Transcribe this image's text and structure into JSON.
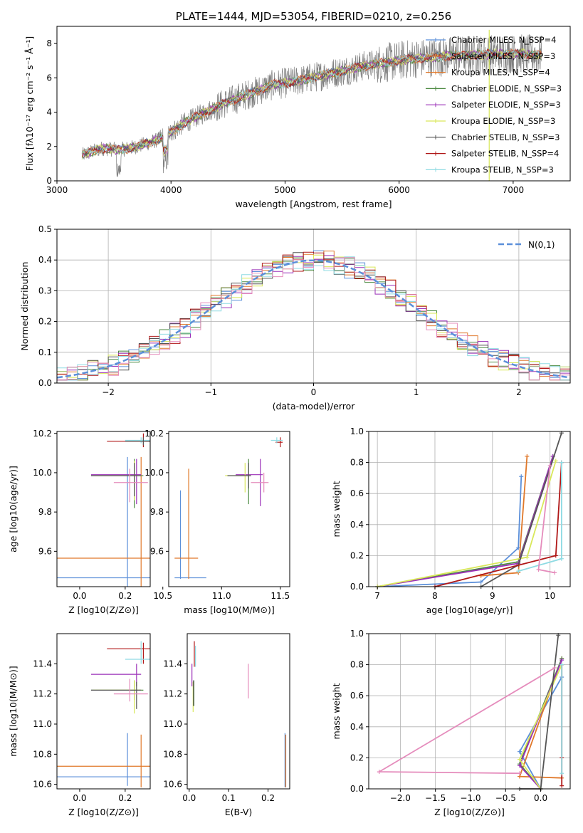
{
  "colors": {
    "chabrier_miles": "#5b8fd9",
    "salpeter_miles": "#e0782a",
    "kroupa_miles": "#e0782a",
    "chabrier_elodie": "#4c8a42",
    "salpeter_elodie": "#9b30b8",
    "kroupa_elodie": "#d9e85a",
    "chabrier_stelib": "#555555",
    "salpeter_stelib": "#b01818",
    "kroupa_stelib": "#8fdbe3",
    "pink": "#e58cbc",
    "data_gray": "#808080",
    "normal_curve": "#5b8fd9"
  },
  "chart_data": [
    {
      "id": "spectrum",
      "type": "line",
      "title": "PLATE=1444, MJD=53054, FIBERID=0210, z=0.256",
      "xlabel": "wavelength [Angstrom, rest frame]",
      "ylabel": "Flux [fλ10⁻¹⁷ erg cm⁻² s⁻¹ Å⁻¹]",
      "xlim": [
        3000,
        7500
      ],
      "ylim": [
        0,
        9
      ],
      "xticks": [
        "3000",
        "4000",
        "5000",
        "6000",
        "7000"
      ],
      "yticks": [
        "0",
        "2",
        "4",
        "6",
        "8"
      ],
      "continuum": {
        "x": [
          3220,
          3400,
          3550,
          3700,
          3850,
          3950,
          4100,
          4300,
          4500,
          4700,
          4900,
          5100,
          5300,
          5500,
          5700,
          5900,
          6100,
          6300,
          6500,
          6700,
          6900,
          7100,
          7250
        ],
        "y": [
          1.5,
          1.9,
          1.8,
          2.0,
          2.3,
          2.6,
          3.3,
          4.0,
          4.6,
          5.1,
          5.6,
          5.8,
          6.1,
          6.4,
          6.7,
          6.9,
          7.1,
          7.2,
          7.3,
          7.35,
          7.4,
          7.4,
          7.3
        ]
      },
      "legend": [
        "Chabrier MILES, N_SSP=4",
        "Salpeter MILES, N_SSP=3",
        "Kroupa MILES, N_SSP=4",
        "Chabrier ELODIE, N_SSP=3",
        "Salpeter ELODIE, N_SSP=3",
        "Kroupa ELODIE, N_SSP=3",
        "Chabrier STELIB, N_SSP=3",
        "Salpeter STELIB, N_SSP=4",
        "Kroupa STELIB, N_SSP=3"
      ]
    },
    {
      "id": "residuals",
      "type": "line",
      "xlabel": "(data-model)/error",
      "ylabel": "Normed distribution",
      "xlim": [
        -2.5,
        2.5
      ],
      "ylim": [
        0,
        0.5
      ],
      "xticks": [
        "−2",
        "−1",
        "0",
        "1",
        "2"
      ],
      "yticks": [
        "0.0",
        "0.1",
        "0.2",
        "0.3",
        "0.4",
        "0.5"
      ],
      "grid": true,
      "legend": [
        "N(0,1)"
      ],
      "bin_width": 0.1
    },
    {
      "id": "age_vs_Z",
      "type": "scatter",
      "xlabel": "Z [log10(Z/Z⊙)]",
      "ylabel": "age  [log10(age/yr)]",
      "xlim": [
        -0.1,
        0.31
      ],
      "ylim": [
        9.42,
        10.21
      ],
      "xticks": [
        "0.0",
        "0.2"
      ],
      "yticks": [
        "9.6",
        "9.8",
        "10.0",
        "10.2"
      ]
    },
    {
      "id": "age_vs_mass",
      "type": "scatter",
      "xlabel": "mass [log10(M/M⊙)]",
      "ylabel": "",
      "xlim": [
        10.55,
        11.58
      ],
      "ylim": [
        9.42,
        10.21
      ],
      "xticks": [
        "10.5",
        "11.0",
        "11.5"
      ],
      "yticks": [
        "9.6",
        "9.8",
        "10.0",
        "10.2"
      ]
    },
    {
      "id": "weight_vs_age",
      "type": "line",
      "xlabel": "age  [log10(age/yr)]",
      "ylabel": "mass weight",
      "xlim": [
        6.85,
        10.35
      ],
      "ylim": [
        0,
        1
      ],
      "xticks": [
        "7",
        "8",
        "9",
        "10"
      ],
      "yticks": [
        "0.0",
        "0.2",
        "0.4",
        "0.6",
        "0.8",
        "1.0"
      ],
      "grid": true
    },
    {
      "id": "mass_vs_Z",
      "type": "scatter",
      "xlabel": "Z [log10(Z/Z⊙)]",
      "ylabel": "mass [log10(M/M⊙)]",
      "xlim": [
        -0.1,
        0.31
      ],
      "ylim": [
        10.57,
        11.6
      ],
      "xticks": [
        "0.0",
        "0.2"
      ],
      "yticks": [
        "10.6",
        "10.8",
        "11.0",
        "11.2",
        "11.4"
      ]
    },
    {
      "id": "mass_vs_ebv",
      "type": "scatter",
      "xlabel": "E(B-V)",
      "ylabel": "",
      "xlim": [
        -0.005,
        0.255
      ],
      "ylim": [
        10.57,
        11.6
      ],
      "xticks": [
        "0.0",
        "0.1",
        "0.2"
      ],
      "yticks": [
        "10.6",
        "10.8",
        "11.0",
        "11.2",
        "11.4"
      ]
    },
    {
      "id": "weight_vs_Z",
      "type": "line",
      "xlabel": "Z [log10(Z/Z⊙)]",
      "ylabel": "mass weight",
      "xlim": [
        -2.45,
        0.42
      ],
      "ylim": [
        0,
        1
      ],
      "xticks": [
        "−2.0",
        "−1.5",
        "−1.0",
        "−0.5",
        "0.0"
      ],
      "yticks": [
        "0.0",
        "0.2",
        "0.4",
        "0.6",
        "0.8",
        "1.0"
      ],
      "grid": true
    }
  ]
}
